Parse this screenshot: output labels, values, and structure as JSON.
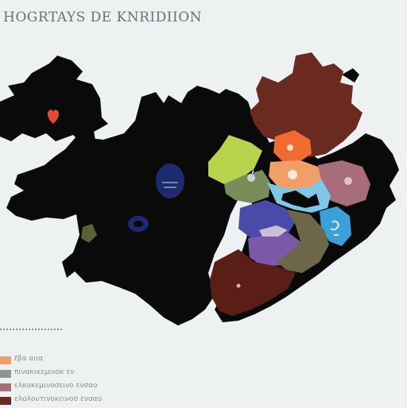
{
  "map": {
    "title": "HOGRTAYS DE KNRIDIION",
    "colors": {
      "background": "#eef1f2",
      "landmass": "#0a0a0a",
      "region_brown": "#6b2a1f",
      "region_dark_brown": "#5a1e16",
      "region_orange": "#f26b2e",
      "region_tan": "#f0a067",
      "region_lime": "#b9d44c",
      "region_olive": "#7a8c5a",
      "region_grey": "#8c9690",
      "region_mauve": "#a86d7a",
      "region_sky": "#7fc7e8",
      "region_blue": "#3aa0d8",
      "region_indigo": "#4a4aa8",
      "region_violet": "#7a5aa8",
      "region_navy": "#1e2a6e",
      "marker_red": "#e24a3a"
    },
    "markers": [
      {
        "name": "heart-marker",
        "icon": "heart-icon"
      },
      {
        "name": "lake-marker-1",
        "icon": "lake-icon"
      },
      {
        "name": "lake-marker-2",
        "icon": "lake-icon"
      }
    ]
  },
  "legend": {
    "items": [
      {
        "label": "ℓβα αιια",
        "color": "#f0a067"
      },
      {
        "label": "πινακικεμινοκ εν",
        "color": "#8c9690"
      },
      {
        "label": "ελκοκεμινοσεινο ενσαο",
        "color": "#a86d7a"
      },
      {
        "label": "ελολουτινοκεινοσ ενσαο",
        "color": "#6b2a1f"
      }
    ]
  }
}
